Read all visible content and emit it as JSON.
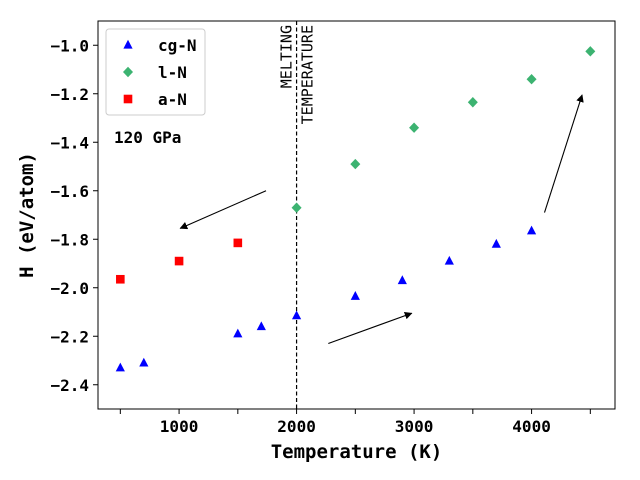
{
  "chart_data": {
    "type": "scatter",
    "title": "",
    "xlabel": "Temperature (K)",
    "ylabel": "H (eV/atom)",
    "xlim": [
      310,
      4710
    ],
    "ylim": [
      -2.5,
      -0.9
    ],
    "xticks": [
      500,
      1000,
      1500,
      2000,
      2500,
      3000,
      3500,
      4000,
      4500
    ],
    "xtick_labels": [
      "",
      "1000",
      "",
      "2000",
      "",
      "3000",
      "",
      "4000",
      ""
    ],
    "yticks": [
      -2.4,
      -2.2,
      -2.0,
      -1.8,
      -1.6,
      -1.4,
      -1.2,
      -1.0
    ],
    "ytick_labels": [
      "−2.4",
      "−2.2",
      "−2.0",
      "−1.8",
      "−1.6",
      "−1.4",
      "−1.2",
      "−1.0"
    ],
    "grid": false,
    "legend_position": "top-left",
    "series": [
      {
        "name": "cg-N",
        "marker": "triangle",
        "color": "#0000ff",
        "x": [
          500,
          700,
          1500,
          1700,
          2000,
          2500,
          2900,
          3300,
          3700,
          4000
        ],
        "y": [
          -2.33,
          -2.31,
          -2.19,
          -2.16,
          -2.115,
          -2.035,
          -1.97,
          -1.89,
          -1.82,
          -1.765
        ]
      },
      {
        "name": "l-N",
        "marker": "diamond",
        "color": "#3cb371",
        "x": [
          2000,
          2500,
          3000,
          3500,
          4000,
          4500
        ],
        "y": [
          -1.67,
          -1.49,
          -1.34,
          -1.235,
          -1.14,
          -1.025
        ]
      },
      {
        "name": "a-N",
        "marker": "square",
        "color": "#ff0000",
        "x": [
          500,
          1000,
          1500
        ],
        "y": [
          -1.965,
          -1.89,
          -1.815
        ]
      }
    ],
    "vline": {
      "x": 2000,
      "style": "dashed",
      "label_line1": "MELTING",
      "label_line2": "TEMPERATURE"
    },
    "annotation_text": "120 GPa",
    "arrows": [
      {
        "from": [
          1740,
          -1.6
        ],
        "to": [
          1010,
          -1.755
        ]
      },
      {
        "from": [
          2270,
          -2.23
        ],
        "to": [
          2980,
          -2.105
        ]
      },
      {
        "from": [
          4110,
          -1.69
        ],
        "to": [
          4430,
          -1.205
        ]
      }
    ]
  }
}
